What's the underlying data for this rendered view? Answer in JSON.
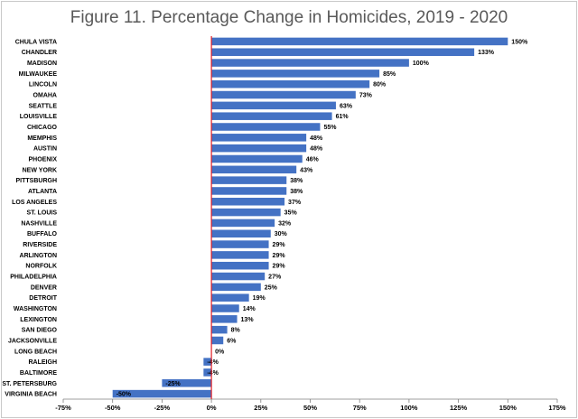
{
  "chart_data": {
    "type": "bar",
    "orientation": "horizontal",
    "title": "Figure 11. Percentage Change in Homicides, 2019 - 2020",
    "xlabel": "",
    "ylabel": "",
    "xlim": [
      -75,
      175
    ],
    "xticks": [
      -75,
      -50,
      -25,
      0,
      25,
      50,
      75,
      100,
      125,
      150,
      175
    ],
    "tick_suffix": "%",
    "colors": {
      "bar": "#4472C4",
      "zero_line": "#E31E24",
      "axis": "#7f7f7f",
      "frame": "#c9c9c9"
    },
    "grid": false,
    "categories": [
      "CHULA VISTA",
      "CHANDLER",
      "MADISON",
      "MILWAUKEE",
      "LINCOLN",
      "OMAHA",
      "SEATTLE",
      "LOUISVILLE",
      "CHICAGO",
      "MEMPHIS",
      "AUSTIN",
      "PHOENIX",
      "NEW YORK",
      "PITTSBURGH",
      "ATLANTA",
      "LOS ANGELES",
      "ST. LOUIS",
      "NASHVILLE",
      "BUFFALO",
      "RIVERSIDE",
      "ARLINGTON",
      "NORFOLK",
      "PHILADELPHIA",
      "DENVER",
      "DETROIT",
      "WASHINGTON",
      "LEXINGTON",
      "SAN DIEGO",
      "JACKSONVILLE",
      "LONG BEACH",
      "RALEIGH",
      "BALTIMORE",
      "ST. PETERSBURG",
      "VIRGINIA BEACH"
    ],
    "values": [
      150,
      133,
      100,
      85,
      80,
      73,
      63,
      61,
      55,
      48,
      48,
      46,
      43,
      38,
      38,
      37,
      35,
      32,
      30,
      29,
      29,
      29,
      27,
      25,
      19,
      14,
      13,
      8,
      6,
      0,
      -4,
      -4,
      -25,
      -50
    ],
    "value_labels": [
      "150%",
      "133%",
      "100%",
      "85%",
      "80%",
      "73%",
      "63%",
      "61%",
      "55%",
      "48%",
      "48%",
      "46%",
      "43%",
      "38%",
      "38%",
      "37%",
      "35%",
      "32%",
      "30%",
      "29%",
      "29%",
      "29%",
      "27%",
      "25%",
      "19%",
      "14%",
      "13%",
      "8%",
      "6%",
      "0%",
      "-4%",
      "-4%",
      "-25%",
      "-50%"
    ]
  }
}
